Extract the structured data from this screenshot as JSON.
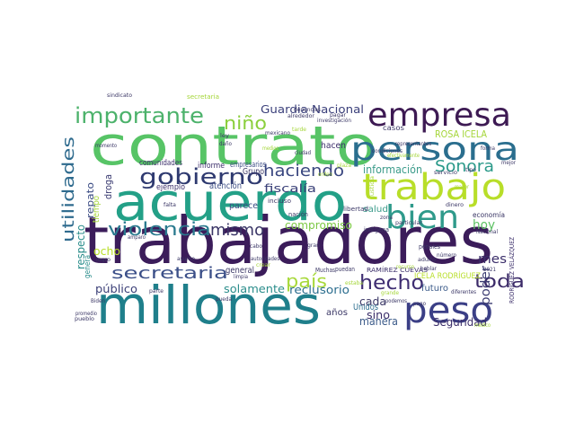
{
  "words": [
    {
      "text": "trabajadores",
      "color": "#3b1c5a"
    },
    {
      "text": "millones",
      "color": "#1f7f8b"
    },
    {
      "text": "contrato",
      "color": "#57c466"
    },
    {
      "text": "acuerdo",
      "color": "#23a087"
    },
    {
      "text": "empresa",
      "color": "#3d1a53"
    },
    {
      "text": "persona",
      "color": "#2a6e8e"
    },
    {
      "text": "trabajo",
      "color": "#b8de29"
    },
    {
      "text": "bien",
      "color": "#2f9a8b"
    },
    {
      "text": "peso",
      "color": "#3b3f86"
    },
    {
      "text": "hecho",
      "color": "#3f2e72"
    },
    {
      "text": "gobierno",
      "color": "#2f3a70"
    },
    {
      "text": "importante",
      "color": "#4cb26b"
    },
    {
      "text": "violencia",
      "color": "#2a7a8e"
    },
    {
      "text": "secretaria",
      "color": "#3b4f88"
    },
    {
      "text": "haciendo",
      "color": "#3a4780"
    },
    {
      "text": "niño",
      "color": "#8bcf3c"
    },
    {
      "text": "mismo",
      "color": "#3a3566"
    },
    {
      "text": "país",
      "color": "#a8d93c"
    },
    {
      "text": "toda",
      "color": "#3b2a68"
    },
    {
      "text": "Sonora",
      "color": "#2b9a8a"
    },
    {
      "text": "utilidades",
      "color": "#2f6b8e"
    },
    {
      "text": "Guardia Nacional",
      "color": "#3a3f7a"
    },
    {
      "text": "fiscalía",
      "color": "#3a4078"
    },
    {
      "text": "compromiso",
      "color": "#7bc843"
    },
    {
      "text": "reclusorio",
      "color": "#2c6e8f"
    },
    {
      "text": "solamente",
      "color": "#2c8e8c"
    },
    {
      "text": "información",
      "color": "#3b9b8a"
    },
    {
      "text": "ROSA ICELA",
      "color": "#a5d63a"
    },
    {
      "text": "mes",
      "color": "#3b2e6a"
    },
    {
      "text": "hoy",
      "color": "#5cc163"
    },
    {
      "text": "cada",
      "color": "#3b3766"
    },
    {
      "text": "poder",
      "color": "#3b3c72"
    },
    {
      "text": "respecto",
      "color": "#2c8e8c"
    },
    {
      "text": "público",
      "color": "#3b3f77"
    },
    {
      "text": "repato",
      "color": "#3b4c84"
    },
    {
      "text": "droga",
      "color": "#3b3c72"
    },
    {
      "text": "ocho",
      "color": "#b8de29"
    },
    {
      "text": "Seguridad",
      "color": "#3b2e6a"
    },
    {
      "text": "manera",
      "color": "#3b5a89"
    },
    {
      "text": "sino",
      "color": "#3b2e6a"
    },
    {
      "text": "hacen",
      "color": "#3b2e6a"
    },
    {
      "text": "salud",
      "color": "#3b9b8a"
    },
    {
      "text": "futuro",
      "color": "#3b5a89"
    },
    {
      "text": "Unidos",
      "color": "#2c6e8f"
    },
    {
      "text": "años",
      "color": "#3b3766"
    },
    {
      "text": "general",
      "color": "#3b3766"
    },
    {
      "text": "parece",
      "color": "#3b4c84"
    },
    {
      "text": "Grupo",
      "color": "#3b3766"
    },
    {
      "text": "atención",
      "color": "#3b4c84"
    },
    {
      "text": "ejemplo",
      "color": "#3b2e6a"
    },
    {
      "text": "informe",
      "color": "#3b2e6a"
    },
    {
      "text": "empresarios",
      "color": "#3b4c84"
    },
    {
      "text": "comunidades",
      "color": "#3b2e6a"
    },
    {
      "text": "tiempo",
      "color": "#a5d63a"
    },
    {
      "text": "genera",
      "color": "#2c8e8c"
    },
    {
      "text": "ICELA RODRÍGUEZ",
      "color": "#b8de29"
    },
    {
      "text": "RAMÍREZ CUEVAS",
      "color": "#3b2e6a"
    },
    {
      "text": "RODRÍGUEZ VELÁZQUEZ",
      "color": "#3b2e6a"
    },
    {
      "text": "economía",
      "color": "#3b3766"
    },
    {
      "text": "casos",
      "color": "#3b3766"
    },
    {
      "text": "nación",
      "color": "#3b3766"
    },
    {
      "text": "incluso",
      "color": "#3b3766"
    },
    {
      "text": "indígena",
      "color": "#3b3766"
    },
    {
      "text": "penales",
      "color": "#3b3766"
    },
    {
      "text": "Muchas",
      "color": "#3b3766"
    },
    {
      "text": "puedan",
      "color": "#3b3766"
    },
    {
      "text": "pueblo",
      "color": "#3b3766"
    },
    {
      "text": "sindicato",
      "color": "#3b3766"
    },
    {
      "text": "Biden",
      "color": "#3b3766"
    },
    {
      "text": "secretaria",
      "color": "#a5d63a"
    },
    {
      "text": "ley",
      "color": "#3b3766"
    },
    {
      "text": "daño",
      "color": "#3b3766"
    },
    {
      "text": "limpia",
      "color": "#3b3766"
    },
    {
      "text": "crear",
      "color": "#a5d63a"
    },
    {
      "text": "amparo",
      "color": "#3b3766"
    },
    {
      "text": "parte",
      "color": "#3b3766"
    },
    {
      "text": "mejor",
      "color": "#3b3766"
    },
    {
      "text": "forma",
      "color": "#3b3766"
    },
    {
      "text": "tipo",
      "color": "#3b3766"
    },
    {
      "text": "servicio",
      "color": "#3b3766"
    },
    {
      "text": "dinero",
      "color": "#3b3766"
    },
    {
      "text": "Nacional",
      "color": "#3b3766"
    },
    {
      "text": "número",
      "color": "#3b3766"
    },
    {
      "text": "adulto",
      "color": "#3b3766"
    },
    {
      "text": "pagar",
      "color": "#3b3766"
    },
    {
      "text": "pago",
      "color": "#3b3766"
    },
    {
      "text": "diferentes",
      "color": "#3b3766"
    },
    {
      "text": "médico",
      "color": "#a5d63a"
    },
    {
      "text": "2021",
      "color": "#3b3766"
    },
    {
      "text": "justicia",
      "color": "#a5d63a"
    },
    {
      "text": "particular",
      "color": "#3b3766"
    },
    {
      "text": "condiciones",
      "color": "#3b3766"
    },
    {
      "text": "libertad",
      "color": "#3b3766"
    },
    {
      "text": "autoridades",
      "color": "#3b3766"
    },
    {
      "text": "asunto",
      "color": "#3b3766"
    },
    {
      "text": "cabo",
      "color": "#3b3766"
    },
    {
      "text": "gran",
      "color": "#3b3766"
    },
    {
      "text": "logro",
      "color": "#3b3766"
    },
    {
      "text": "falta",
      "color": "#3b3766"
    },
    {
      "text": "plaza",
      "color": "#a5d63a"
    },
    {
      "text": "zona",
      "color": "#3b3766"
    },
    {
      "text": "grande",
      "color": "#a5d63a"
    },
    {
      "text": "podemos",
      "color": "#3b3766"
    },
    {
      "text": "representantes",
      "color": "#3b3766"
    },
    {
      "text": "denuncias",
      "color": "#3b3766"
    },
    {
      "text": "investigación",
      "color": "#3b3766"
    },
    {
      "text": "alrededor",
      "color": "#3b3766"
    },
    {
      "text": "mexicano",
      "color": "#3b3766"
    },
    {
      "text": "momento",
      "color": "#3b3766"
    },
    {
      "text": "efectivamente",
      "color": "#a5d63a"
    },
    {
      "text": "hablar",
      "color": "#3b3766"
    },
    {
      "text": "recurso",
      "color": "#a5d63a"
    },
    {
      "text": "pueda",
      "color": "#3b3766"
    },
    {
      "text": "promedio",
      "color": "#3b3766"
    },
    {
      "text": "estaba",
      "color": "#a5d63a"
    },
    {
      "text": "medios",
      "color": "#a5d63a"
    },
    {
      "text": "tarde",
      "color": "#a5d63a"
    },
    {
      "text": "ciudad",
      "color": "#3b3766"
    },
    {
      "text": "orden",
      "color": "#a5d63a"
    },
    {
      "text": "mayor",
      "color": "#a5d63a"
    }
  ]
}
